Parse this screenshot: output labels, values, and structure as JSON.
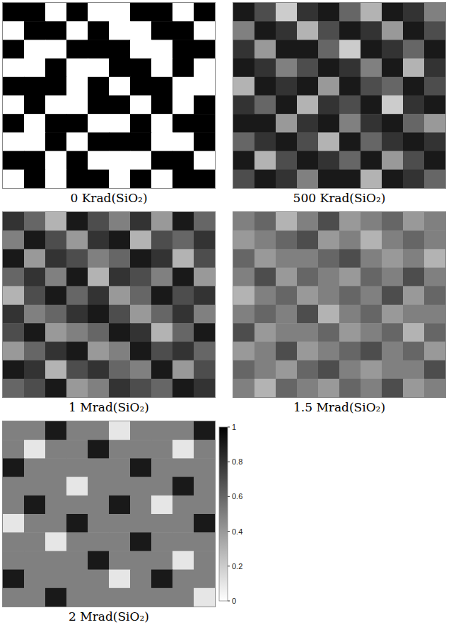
{
  "chart_data": [
    {
      "type": "heatmap",
      "title": "0 Krad(SiO₂)",
      "tick_labels": false,
      "zlim": [
        0,
        1
      ],
      "cells": [
        [
          1,
          1,
          0,
          1,
          0,
          0,
          1,
          1,
          0,
          1
        ],
        [
          0,
          1,
          1,
          0,
          1,
          0,
          0,
          1,
          1,
          0
        ],
        [
          1,
          0,
          0,
          1,
          1,
          1,
          0,
          0,
          1,
          1
        ],
        [
          0,
          0,
          1,
          0,
          0,
          1,
          1,
          0,
          1,
          0
        ],
        [
          1,
          1,
          1,
          0,
          1,
          0,
          1,
          1,
          0,
          0
        ],
        [
          0,
          1,
          0,
          0,
          1,
          1,
          0,
          1,
          0,
          1
        ],
        [
          1,
          0,
          1,
          1,
          0,
          0,
          1,
          0,
          1,
          1
        ],
        [
          0,
          0,
          1,
          0,
          1,
          1,
          1,
          0,
          0,
          1
        ],
        [
          1,
          1,
          0,
          1,
          0,
          0,
          0,
          1,
          1,
          0
        ],
        [
          0,
          1,
          0,
          1,
          1,
          0,
          1,
          0,
          1,
          1
        ]
      ]
    },
    {
      "type": "heatmap",
      "title": "500 Krad(SiO₂)",
      "tick_labels": false,
      "zlim": [
        0,
        1
      ],
      "cells": [
        [
          0.9,
          0.7,
          0.2,
          0.8,
          0.9,
          0.6,
          0.3,
          0.9,
          0.8,
          0.5
        ],
        [
          0.5,
          0.9,
          0.8,
          0.3,
          0.7,
          0.9,
          0.8,
          0.4,
          0.9,
          0.7
        ],
        [
          0.8,
          0.4,
          0.9,
          0.9,
          0.6,
          0.2,
          0.9,
          0.8,
          0.6,
          0.9
        ],
        [
          0.9,
          0.8,
          0.5,
          0.7,
          0.9,
          0.8,
          0.5,
          0.9,
          0.3,
          0.8
        ],
        [
          0.3,
          0.9,
          0.8,
          0.9,
          0.4,
          0.9,
          0.7,
          0.6,
          0.9,
          0.7
        ],
        [
          0.8,
          0.6,
          0.9,
          0.3,
          0.8,
          0.7,
          0.9,
          0.2,
          0.8,
          0.9
        ],
        [
          0.9,
          0.9,
          0.4,
          0.8,
          0.9,
          0.5,
          0.8,
          0.9,
          0.6,
          0.4
        ],
        [
          0.6,
          0.8,
          0.9,
          0.7,
          0.3,
          0.9,
          0.6,
          0.8,
          0.9,
          0.8
        ],
        [
          0.9,
          0.3,
          0.7,
          0.9,
          0.8,
          0.6,
          0.9,
          0.4,
          0.7,
          0.9
        ],
        [
          0.7,
          0.9,
          0.8,
          0.5,
          0.9,
          0.9,
          0.3,
          0.9,
          0.8,
          0.6
        ]
      ]
    },
    {
      "type": "heatmap",
      "title": "1 Mrad(SiO₂)",
      "tick_labels": false,
      "zlim": [
        0,
        1
      ],
      "cells": [
        [
          0.8,
          0.6,
          0.3,
          0.9,
          0.7,
          0.5,
          0.8,
          0.4,
          0.9,
          0.6
        ],
        [
          0.5,
          0.9,
          0.7,
          0.4,
          0.8,
          0.9,
          0.3,
          0.7,
          0.6,
          0.8
        ],
        [
          0.9,
          0.4,
          0.8,
          0.7,
          0.5,
          0.6,
          0.9,
          0.8,
          0.3,
          0.7
        ],
        [
          0.6,
          0.8,
          0.5,
          0.9,
          0.3,
          0.8,
          0.7,
          0.5,
          0.9,
          0.4
        ],
        [
          0.3,
          0.7,
          0.9,
          0.6,
          0.8,
          0.4,
          0.6,
          0.9,
          0.7,
          0.8
        ],
        [
          0.8,
          0.5,
          0.6,
          0.8,
          0.9,
          0.7,
          0.4,
          0.6,
          0.8,
          0.5
        ],
        [
          0.7,
          0.9,
          0.4,
          0.5,
          0.6,
          0.9,
          0.8,
          0.3,
          0.6,
          0.9
        ],
        [
          0.4,
          0.6,
          0.8,
          0.9,
          0.4,
          0.5,
          0.9,
          0.7,
          0.8,
          0.6
        ],
        [
          0.9,
          0.8,
          0.3,
          0.7,
          0.8,
          0.6,
          0.5,
          0.9,
          0.4,
          0.7
        ],
        [
          0.6,
          0.7,
          0.9,
          0.4,
          0.5,
          0.8,
          0.7,
          0.6,
          0.9,
          0.8
        ]
      ]
    },
    {
      "type": "heatmap",
      "title": "1.5 Mrad(SiO₂)",
      "tick_labels": false,
      "zlim": [
        0,
        1
      ],
      "cells": [
        [
          0.5,
          0.6,
          0.3,
          0.5,
          0.7,
          0.4,
          0.5,
          0.6,
          0.4,
          0.5
        ],
        [
          0.4,
          0.5,
          0.6,
          0.7,
          0.4,
          0.5,
          0.3,
          0.5,
          0.6,
          0.5
        ],
        [
          0.6,
          0.4,
          0.5,
          0.5,
          0.6,
          0.7,
          0.5,
          0.4,
          0.5,
          0.3
        ],
        [
          0.5,
          0.7,
          0.4,
          0.6,
          0.5,
          0.4,
          0.6,
          0.5,
          0.7,
          0.5
        ],
        [
          0.3,
          0.5,
          0.6,
          0.4,
          0.5,
          0.6,
          0.5,
          0.7,
          0.4,
          0.6
        ],
        [
          0.5,
          0.6,
          0.5,
          0.7,
          0.3,
          0.5,
          0.6,
          0.4,
          0.5,
          0.5
        ],
        [
          0.7,
          0.4,
          0.5,
          0.5,
          0.6,
          0.4,
          0.5,
          0.6,
          0.3,
          0.6
        ],
        [
          0.4,
          0.5,
          0.7,
          0.4,
          0.5,
          0.6,
          0.7,
          0.5,
          0.6,
          0.4
        ],
        [
          0.6,
          0.5,
          0.4,
          0.6,
          0.7,
          0.5,
          0.4,
          0.5,
          0.5,
          0.7
        ],
        [
          0.5,
          0.3,
          0.6,
          0.5,
          0.4,
          0.6,
          0.5,
          0.7,
          0.4,
          0.5
        ]
      ]
    },
    {
      "type": "heatmap",
      "title": "2 Mrad(SiO₂)",
      "tick_labels": false,
      "zlim": [
        0,
        1
      ],
      "colorbar": {
        "range": [
          0,
          1
        ],
        "ticks": [
          0,
          0.2,
          0.4,
          0.6,
          0.8,
          1
        ]
      },
      "cells": [
        [
          0.5,
          0.5,
          0.9,
          0.5,
          0.5,
          0.1,
          0.5,
          0.5,
          0.5,
          0.9
        ],
        [
          0.5,
          0.1,
          0.5,
          0.5,
          0.9,
          0.5,
          0.5,
          0.5,
          0.1,
          0.5
        ],
        [
          0.9,
          0.5,
          0.5,
          0.5,
          0.5,
          0.5,
          0.9,
          0.5,
          0.5,
          0.5
        ],
        [
          0.5,
          0.5,
          0.5,
          0.1,
          0.5,
          0.5,
          0.5,
          0.5,
          0.9,
          0.5
        ],
        [
          0.5,
          0.9,
          0.5,
          0.5,
          0.5,
          0.9,
          0.5,
          0.1,
          0.5,
          0.5
        ],
        [
          0.1,
          0.5,
          0.5,
          0.9,
          0.5,
          0.5,
          0.5,
          0.5,
          0.5,
          0.9
        ],
        [
          0.5,
          0.5,
          0.1,
          0.5,
          0.5,
          0.5,
          0.9,
          0.5,
          0.5,
          0.5
        ],
        [
          0.5,
          0.5,
          0.5,
          0.5,
          0.9,
          0.5,
          0.5,
          0.5,
          0.1,
          0.5
        ],
        [
          0.9,
          0.5,
          0.5,
          0.5,
          0.5,
          0.1,
          0.5,
          0.9,
          0.5,
          0.5
        ],
        [
          0.5,
          0.5,
          0.9,
          0.5,
          0.5,
          0.5,
          0.5,
          0.5,
          0.5,
          0.1
        ]
      ]
    }
  ]
}
